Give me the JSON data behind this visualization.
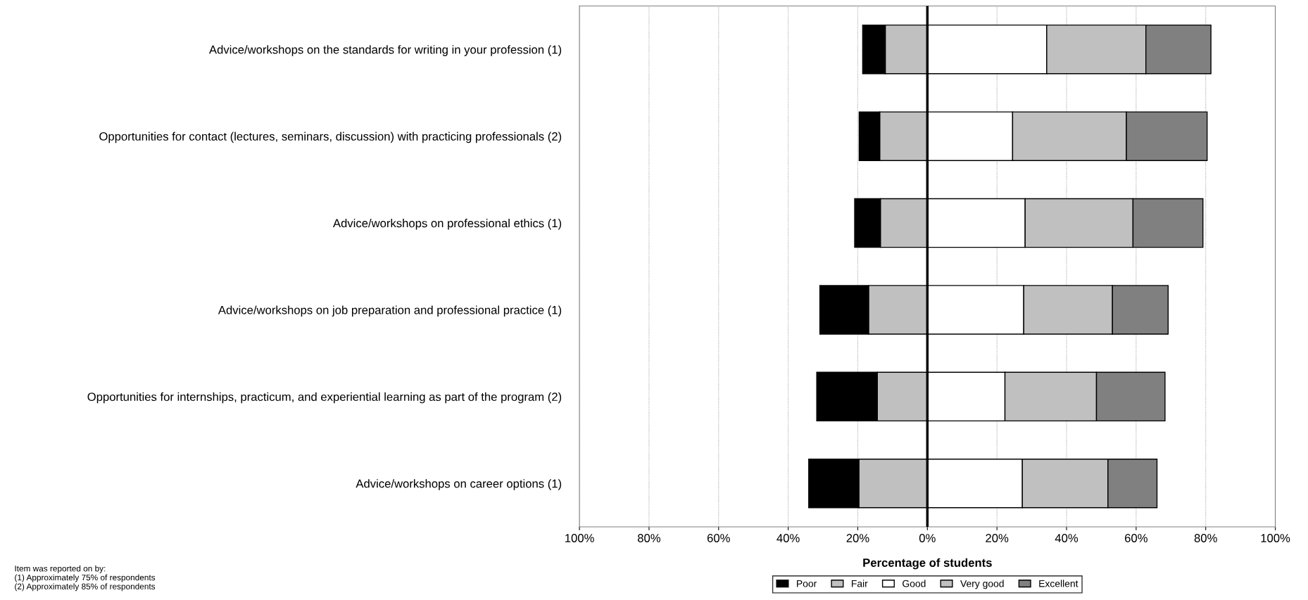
{
  "chart_data": {
    "type": "bar",
    "orientation": "horizontal",
    "stacked": true,
    "categories": [
      "Advice/workshops on the standards for writing in your profession (1)",
      "Opportunities for contact (lectures, seminars, discussion) with practicing professionals (2)",
      "Advice/workshops on professional ethics (1)",
      "Advice/workshops on job preparation and professional practice (1)",
      "Opportunities for internships, practicum, and experiential learning as part of the program (2)",
      "Advice/workshops on career options (1)"
    ],
    "series": [
      {
        "name": "Fair",
        "color": "#c0c0c0",
        "values": [
          -12.1,
          -13.7,
          -13.5,
          -16.9,
          -14.4,
          -19.7
        ]
      },
      {
        "name": "Poor",
        "color": "#000000",
        "values": [
          -6.5,
          -5.9,
          -7.4,
          -14.0,
          -17.4,
          -14.4
        ]
      },
      {
        "name": "Good",
        "color": "#ffffff",
        "values": [
          34.3,
          24.5,
          28.1,
          27.7,
          22.3,
          27.3
        ]
      },
      {
        "name": "Very good",
        "color": "#c0c0c0",
        "values": [
          28.5,
          32.7,
          31.0,
          25.5,
          26.3,
          24.6
        ]
      },
      {
        "name": "Excellent",
        "color": "#808080",
        "values": [
          18.7,
          23.2,
          20.1,
          16.0,
          19.7,
          14.1
        ]
      }
    ],
    "xlim": [
      -100,
      100
    ],
    "xticks": [
      {
        "value": -100,
        "label": "100%"
      },
      {
        "value": -80,
        "label": "80%"
      },
      {
        "value": -60,
        "label": "60%"
      },
      {
        "value": -40,
        "label": "40%"
      },
      {
        "value": -20,
        "label": "20%"
      },
      {
        "value": 0,
        "label": "0%"
      },
      {
        "value": 20,
        "label": "20%"
      },
      {
        "value": 40,
        "label": "40%"
      },
      {
        "value": 60,
        "label": "60%"
      },
      {
        "value": 80,
        "label": "80%"
      },
      {
        "value": 100,
        "label": "100%"
      }
    ],
    "xlabel": "Percentage of students",
    "grid": "x",
    "legend": "bottom",
    "ref_lines": [
      {
        "axis": "x",
        "value": 0,
        "color": "#000000"
      }
    ],
    "annotations": [
      "Item was reported on by:\n(1) Approximately 75% of respondents\n(2) Approximately 85% of respondents"
    ]
  }
}
